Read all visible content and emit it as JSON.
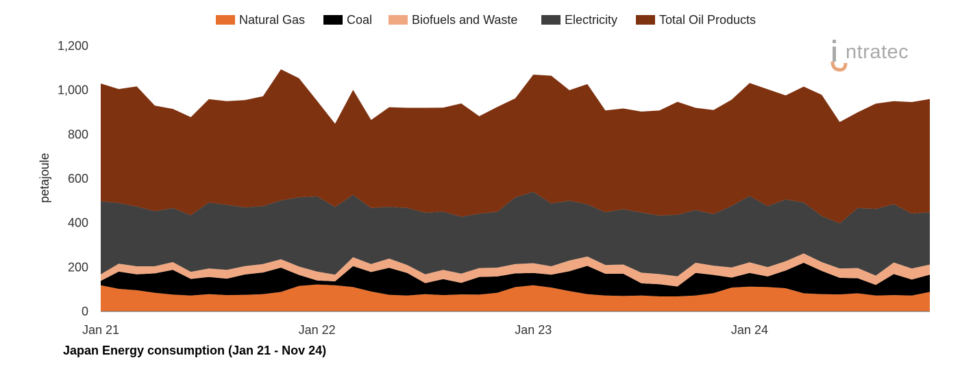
{
  "caption": "Japan Energy consumption (Jan 21 - Nov 24)",
  "logo": {
    "name": "intratec-logo",
    "text": "ntratec"
  },
  "chart_data": {
    "type": "area",
    "stacked": true,
    "title": "",
    "xlabel": "",
    "ylabel": "petajoule",
    "ylim": [
      0,
      1200
    ],
    "yticks": [
      0,
      200,
      400,
      600,
      800,
      1000,
      1200
    ],
    "ytick_labels": [
      "0",
      "200",
      "400",
      "600",
      "800",
      "1,000",
      "1,200"
    ],
    "xtick_labels": [
      "Jan 21",
      "Jan 22",
      "Jan 23",
      "Jan 24"
    ],
    "xtick_indices": [
      0,
      12,
      24,
      36
    ],
    "grid": false,
    "legend_position": "top",
    "x": [
      "Jan 21",
      "Feb 21",
      "Mar 21",
      "Apr 21",
      "May 21",
      "Jun 21",
      "Jul 21",
      "Aug 21",
      "Sep 21",
      "Oct 21",
      "Nov 21",
      "Dec 21",
      "Jan 22",
      "Feb 22",
      "Mar 22",
      "Apr 22",
      "May 22",
      "Jun 22",
      "Jul 22",
      "Aug 22",
      "Sep 22",
      "Oct 22",
      "Nov 22",
      "Dec 22",
      "Jan 23",
      "Feb 23",
      "Mar 23",
      "Apr 23",
      "May 23",
      "Jun 23",
      "Jul 23",
      "Aug 23",
      "Sep 23",
      "Oct 23",
      "Nov 23",
      "Dec 23",
      "Jan 24",
      "Feb 24",
      "Mar 24",
      "Apr 24",
      "May 24",
      "Jun 24",
      "Jul 24",
      "Aug 24",
      "Sep 24",
      "Oct 24",
      "Nov 24"
    ],
    "series": [
      {
        "name": "Natural Gas",
        "color": "#e8702e",
        "values": [
          118,
          102,
          96,
          84,
          76,
          72,
          78,
          74,
          75,
          78,
          88,
          115,
          122,
          118,
          110,
          90,
          75,
          72,
          78,
          74,
          77,
          76,
          84,
          110,
          118,
          108,
          92,
          78,
          72,
          70,
          72,
          68,
          68,
          72,
          83,
          108,
          112,
          110,
          105,
          82,
          78,
          77,
          82,
          72,
          74,
          72,
          88
        ]
      },
      {
        "name": "Coal",
        "color": "#000000",
        "values": [
          20,
          78,
          72,
          88,
          112,
          75,
          78,
          74,
          92,
          98,
          110,
          50,
          18,
          18,
          95,
          88,
          122,
          102,
          50,
          72,
          52,
          80,
          74,
          62,
          56,
          58,
          90,
          128,
          98,
          100,
          55,
          55,
          45,
          102,
          82,
          45,
          62,
          48,
          80,
          138,
          105,
          75,
          68,
          48,
          95,
          72,
          78
        ]
      },
      {
        "name": "Biofuels and Waste",
        "color": "#f0a882",
        "values": [
          30,
          36,
          36,
          32,
          35,
          32,
          38,
          40,
          38,
          38,
          38,
          38,
          40,
          30,
          40,
          36,
          42,
          36,
          40,
          42,
          42,
          40,
          40,
          42,
          44,
          38,
          48,
          42,
          40,
          42,
          48,
          46,
          46,
          46,
          42,
          46,
          48,
          42,
          42,
          42,
          40,
          42,
          46,
          42,
          52,
          50,
          46
        ]
      },
      {
        "name": "Electricity",
        "color": "#404040",
        "values": [
          330,
          274,
          270,
          249,
          244,
          256,
          298,
          294,
          265,
          262,
          266,
          313,
          340,
          306,
          282,
          253,
          234,
          258,
          278,
          263,
          257,
          246,
          252,
          302,
          322,
          284,
          270,
          236,
          238,
          250,
          272,
          264,
          278,
          238,
          233,
          278,
          300,
          276,
          279,
          230,
          208,
          204,
          272,
          301,
          264,
          248,
          236
        ]
      },
      {
        "name": "Total Oil Products",
        "color": "#7f3210",
        "values": [
          532,
          515,
          543,
          477,
          448,
          443,
          467,
          468,
          485,
          496,
          592,
          538,
          432,
          376,
          474,
          398,
          450,
          452,
          474,
          470,
          512,
          440,
          474,
          447,
          530,
          577,
          500,
          543,
          460,
          455,
          456,
          475,
          510,
          462,
          470,
          480,
          510,
          528,
          470,
          524,
          548,
          458,
          432,
          476,
          465,
          504,
          512
        ]
      }
    ]
  }
}
